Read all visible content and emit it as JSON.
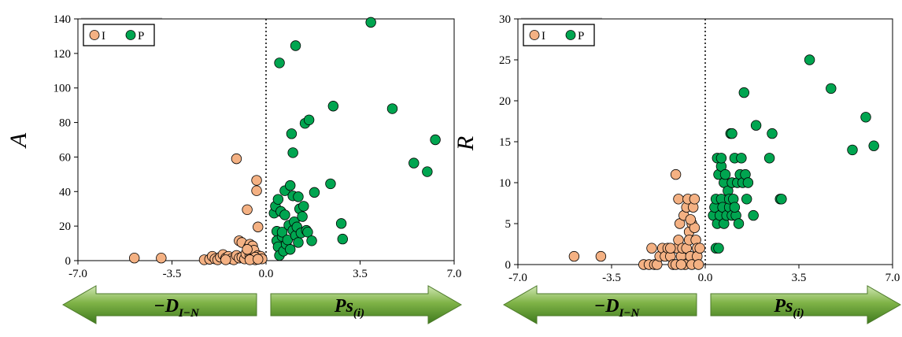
{
  "chart_data": [
    {
      "type": "scatter",
      "ylabel": "A",
      "xlim": [
        -7.0,
        7.0
      ],
      "ylim": [
        0,
        140
      ],
      "x_ticks": [
        -7.0,
        -3.5,
        0.0,
        3.5,
        7.0
      ],
      "x_tick_labels": [
        "-7.0",
        "-3.5",
        "0.0",
        "3.5",
        "7.0"
      ],
      "y_ticks": [
        0,
        20,
        40,
        60,
        80,
        100,
        120,
        140
      ],
      "y_tick_labels": [
        "0",
        "20",
        "40",
        "60",
        "80",
        "100",
        "120",
        "140"
      ],
      "legend_position": "top-left",
      "reference_line": {
        "x": 0,
        "style": "dotted"
      },
      "series": [
        {
          "name": "I",
          "color": "#f4b183",
          "points": [
            [
              -4.9,
              1.5
            ],
            [
              -3.9,
              1.5
            ],
            [
              -2.3,
              0.5
            ],
            [
              -2.1,
              0.8
            ],
            [
              -2.0,
              2.5
            ],
            [
              -1.9,
              1.0
            ],
            [
              -1.8,
              0.5
            ],
            [
              -1.7,
              2.0
            ],
            [
              -1.6,
              3.5
            ],
            [
              -1.5,
              1.5
            ],
            [
              -1.4,
              2.5
            ],
            [
              -1.3,
              1.0
            ],
            [
              -1.2,
              0.5
            ],
            [
              -1.1,
              3.0
            ],
            [
              -1.0,
              1.5
            ],
            [
              -1.1,
              59.0
            ],
            [
              -1.0,
              11.5
            ],
            [
              -0.9,
              10.5
            ],
            [
              -0.9,
              2.0
            ],
            [
              -0.8,
              1.0
            ],
            [
              -0.75,
              4.0
            ],
            [
              -0.7,
              29.5
            ],
            [
              -0.65,
              8.0
            ],
            [
              -0.6,
              9.5
            ],
            [
              -0.6,
              3.0
            ],
            [
              -0.55,
              2.0
            ],
            [
              -0.5,
              1.0
            ],
            [
              -0.5,
              8.5
            ],
            [
              -0.45,
              6.0
            ],
            [
              -0.4,
              0.5
            ],
            [
              -0.35,
              46.5
            ],
            [
              -0.35,
              40.5
            ],
            [
              -0.3,
              19.5
            ],
            [
              -0.3,
              3.0
            ],
            [
              -0.25,
              1.5
            ],
            [
              -0.2,
              2.5
            ],
            [
              -0.15,
              1.0
            ],
            [
              -0.4,
              2.0
            ],
            [
              -0.6,
              0.5
            ],
            [
              -1.5,
              0.5
            ],
            [
              -0.7,
              6.5
            ],
            [
              -0.3,
              0.8
            ]
          ]
        },
        {
          "name": "P",
          "color": "#00a550",
          "points": [
            [
              0.3,
              27.5
            ],
            [
              0.35,
              31.5
            ],
            [
              0.4,
              17.0
            ],
            [
              0.4,
              11.5
            ],
            [
              0.45,
              35.5
            ],
            [
              0.45,
              8.0
            ],
            [
              0.5,
              3.0
            ],
            [
              0.5,
              114.5
            ],
            [
              0.55,
              28.5
            ],
            [
              0.6,
              14.0
            ],
            [
              0.6,
              16.5
            ],
            [
              0.65,
              5.5
            ],
            [
              0.7,
              26.5
            ],
            [
              0.7,
              40.5
            ],
            [
              0.75,
              9.5
            ],
            [
              0.8,
              12.0
            ],
            [
              0.85,
              20.5
            ],
            [
              0.9,
              43.5
            ],
            [
              0.9,
              6.5
            ],
            [
              0.95,
              73.5
            ],
            [
              1.0,
              37.5
            ],
            [
              1.0,
              62.5
            ],
            [
              1.0,
              17.5
            ],
            [
              1.05,
              22.5
            ],
            [
              1.1,
              124.5
            ],
            [
              1.1,
              14.5
            ],
            [
              1.15,
              19.5
            ],
            [
              1.2,
              37.0
            ],
            [
              1.2,
              10.5
            ],
            [
              1.25,
              30.0
            ],
            [
              1.3,
              16.0
            ],
            [
              1.35,
              25.5
            ],
            [
              1.4,
              31.5
            ],
            [
              1.45,
              79.5
            ],
            [
              1.5,
              17.5
            ],
            [
              1.55,
              16.5
            ],
            [
              1.6,
              81.5
            ],
            [
              1.7,
              11.5
            ],
            [
              1.8,
              39.5
            ],
            [
              2.4,
              44.5
            ],
            [
              2.5,
              89.5
            ],
            [
              2.8,
              21.5
            ],
            [
              2.85,
              12.5
            ],
            [
              3.9,
              138.0
            ],
            [
              4.7,
              88.0
            ],
            [
              5.5,
              56.5
            ],
            [
              6.0,
              51.5
            ],
            [
              6.3,
              70.0
            ]
          ]
        }
      ]
    },
    {
      "type": "scatter",
      "ylabel": "R",
      "xlim": [
        -7.0,
        7.0
      ],
      "ylim": [
        0,
        30
      ],
      "x_ticks": [
        -7.0,
        -3.5,
        0.0,
        3.5,
        7.0
      ],
      "x_tick_labels": [
        "-7.0",
        "-3.5",
        "0.0",
        "3.5",
        "7.0"
      ],
      "y_ticks": [
        0,
        5,
        10,
        15,
        20,
        25,
        30
      ],
      "y_tick_labels": [
        "0",
        "5",
        "10",
        "15",
        "20",
        "25",
        "30"
      ],
      "legend_position": "top-left",
      "reference_line": {
        "x": 0,
        "style": "dotted"
      },
      "series": [
        {
          "name": "I",
          "color": "#f4b183",
          "points": [
            [
              -4.9,
              1.0
            ],
            [
              -3.9,
              1.0
            ],
            [
              -2.3,
              0.0
            ],
            [
              -2.1,
              0.0
            ],
            [
              -2.0,
              2.0
            ],
            [
              -1.9,
              0.0
            ],
            [
              -1.8,
              0.0
            ],
            [
              -1.7,
              1.0
            ],
            [
              -1.6,
              2.0
            ],
            [
              -1.5,
              1.0
            ],
            [
              -1.4,
              2.0
            ],
            [
              -1.3,
              1.0
            ],
            [
              -1.2,
              0.0
            ],
            [
              -1.1,
              11.0
            ],
            [
              -1.05,
              2.0
            ],
            [
              -1.0,
              3.0
            ],
            [
              -1.0,
              8.0
            ],
            [
              -0.95,
              5.0
            ],
            [
              -0.9,
              1.0
            ],
            [
              -0.85,
              2.0
            ],
            [
              -0.8,
              6.0
            ],
            [
              -0.75,
              0.0
            ],
            [
              -0.7,
              7.0
            ],
            [
              -0.7,
              2.0
            ],
            [
              -0.65,
              8.0
            ],
            [
              -0.6,
              4.0
            ],
            [
              -0.6,
              3.0
            ],
            [
              -0.55,
              1.0
            ],
            [
              -0.5,
              5.0
            ],
            [
              -0.5,
              0.0
            ],
            [
              -0.45,
              7.0
            ],
            [
              -0.4,
              8.0
            ],
            [
              -0.4,
              4.5
            ],
            [
              -0.35,
              3.0
            ],
            [
              -0.3,
              2.0
            ],
            [
              -0.3,
              1.0
            ],
            [
              -0.25,
              0.0
            ],
            [
              -0.2,
              2.0
            ],
            [
              -1.1,
              0.0
            ],
            [
              -0.9,
              0.0
            ],
            [
              -0.55,
              5.5
            ],
            [
              -1.3,
              2.0
            ]
          ]
        },
        {
          "name": "P",
          "color": "#00a550",
          "points": [
            [
              0.3,
              6.0
            ],
            [
              0.35,
              7.0
            ],
            [
              0.4,
              2.0
            ],
            [
              0.4,
              8.0
            ],
            [
              0.45,
              13.0
            ],
            [
              0.45,
              5.0
            ],
            [
              0.5,
              2.0
            ],
            [
              0.5,
              11.0
            ],
            [
              0.55,
              6.0
            ],
            [
              0.6,
              12.0
            ],
            [
              0.6,
              8.0
            ],
            [
              0.65,
              7.0
            ],
            [
              0.7,
              5.0
            ],
            [
              0.7,
              10.0
            ],
            [
              0.75,
              11.0
            ],
            [
              0.8,
              6.0
            ],
            [
              0.85,
              9.0
            ],
            [
              0.9,
              7.0
            ],
            [
              0.9,
              8.0
            ],
            [
              0.95,
              16.0
            ],
            [
              1.0,
              10.0
            ],
            [
              1.0,
              6.0
            ],
            [
              1.05,
              8.0
            ],
            [
              1.1,
              13.0
            ],
            [
              1.15,
              6.0
            ],
            [
              1.2,
              10.0
            ],
            [
              1.25,
              5.0
            ],
            [
              1.3,
              11.0
            ],
            [
              1.35,
              13.0
            ],
            [
              1.4,
              10.0
            ],
            [
              1.45,
              21.0
            ],
            [
              1.5,
              11.0
            ],
            [
              1.55,
              8.0
            ],
            [
              1.6,
              10.0
            ],
            [
              1.8,
              6.0
            ],
            [
              1.9,
              17.0
            ],
            [
              2.4,
              13.0
            ],
            [
              2.5,
              16.0
            ],
            [
              2.8,
              8.0
            ],
            [
              2.85,
              8.0
            ],
            [
              3.9,
              25.0
            ],
            [
              4.7,
              21.5
            ],
            [
              5.5,
              14.0
            ],
            [
              6.0,
              18.0
            ],
            [
              6.3,
              14.5
            ],
            [
              0.6,
              13.0
            ],
            [
              1.1,
              7.0
            ],
            [
              1.0,
              16.0
            ]
          ]
        }
      ]
    }
  ],
  "arrows": {
    "left_label": "−D",
    "left_sub": "I−N",
    "right_label": "Ps",
    "right_sub": "(i)"
  }
}
